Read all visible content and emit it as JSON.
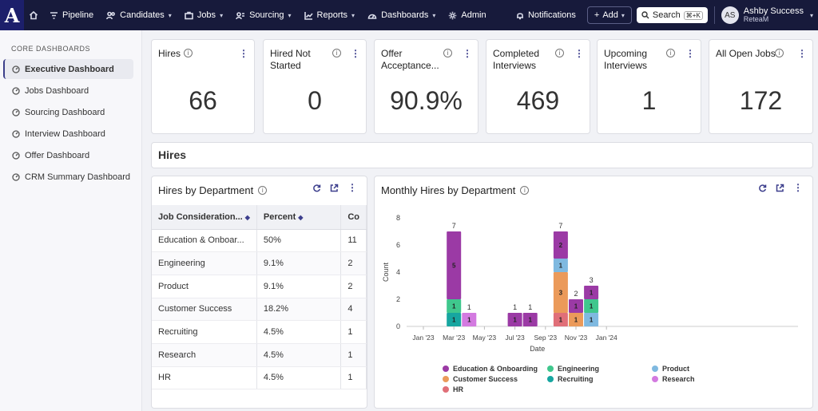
{
  "nav": {
    "logo": "A",
    "items": [
      {
        "label": "Pipeline",
        "caret": false
      },
      {
        "label": "Candidates",
        "caret": true
      },
      {
        "label": "Jobs",
        "caret": true
      },
      {
        "label": "Sourcing",
        "caret": true
      },
      {
        "label": "Reports",
        "caret": true
      },
      {
        "label": "Dashboards",
        "caret": true
      },
      {
        "label": "Admin",
        "caret": false
      }
    ],
    "notifications": "Notifications",
    "add": "Add",
    "search": "Search",
    "search_shortcut": "⌘+K",
    "user_initials": "AS",
    "user_name": "Ashby Success",
    "user_org": "ReteaM"
  },
  "sidebar": {
    "heading": "CORE DASHBOARDS",
    "items": [
      {
        "label": "Executive Dashboard",
        "active": true
      },
      {
        "label": "Jobs Dashboard",
        "active": false
      },
      {
        "label": "Sourcing Dashboard",
        "active": false
      },
      {
        "label": "Interview Dashboard",
        "active": false
      },
      {
        "label": "Offer Dashboard",
        "active": false
      },
      {
        "label": "CRM Summary Dashboard",
        "active": false
      }
    ]
  },
  "kpis": [
    {
      "title": "Hires",
      "value": "66"
    },
    {
      "title": "Hired Not Started",
      "value": "0"
    },
    {
      "title": "Offer Acceptance...",
      "value": "90.9%"
    },
    {
      "title": "Completed Interviews",
      "value": "469"
    },
    {
      "title": "Upcoming Interviews",
      "value": "1"
    },
    {
      "title": "All Open Jobs",
      "value": "172"
    }
  ],
  "section_title": "Hires",
  "dept_table": {
    "title": "Hires by Department",
    "columns": [
      "Job Consideration...",
      "Percent",
      "Co"
    ],
    "rows": [
      [
        "Education & Onboar...",
        "50%",
        "11"
      ],
      [
        "Engineering",
        "9.1%",
        "2"
      ],
      [
        "Product",
        "9.1%",
        "2"
      ],
      [
        "Customer Success",
        "18.2%",
        "4"
      ],
      [
        "Recruiting",
        "4.5%",
        "1"
      ],
      [
        "Research",
        "4.5%",
        "1"
      ],
      [
        "HR",
        "4.5%",
        "1"
      ]
    ]
  },
  "colors": {
    "Education & Onboarding": "#9b3aa5",
    "Engineering": "#3fc78d",
    "Product": "#7fb9e0",
    "Customer Success": "#eb9a5a",
    "Recruiting": "#17a6a0",
    "Research": "#d37ae0",
    "HR": "#e06f78"
  },
  "chart_data": {
    "type": "bar",
    "stacked": true,
    "title": "Monthly Hires by Department",
    "xlabel": "Date",
    "ylabel": "Count",
    "ylim": [
      0,
      8
    ],
    "y_ticks": [
      0,
      2,
      4,
      6,
      8
    ],
    "x_ticks": [
      "Jan '23",
      "Mar '23",
      "May '23",
      "Jul '23",
      "Sep '23",
      "Nov '23",
      "Jan '24"
    ],
    "legend": [
      "Education & Onboarding",
      "Engineering",
      "Product",
      "Customer Success",
      "Recruiting",
      "Research",
      "HR"
    ],
    "bars": [
      {
        "month": "Mar '23",
        "total": 7,
        "segments": [
          {
            "series": "Recruiting",
            "value": 1
          },
          {
            "series": "Engineering",
            "value": 1
          },
          {
            "series": "Education & Onboarding",
            "value": 5
          }
        ]
      },
      {
        "month": "Apr '23",
        "total": 1,
        "segments": [
          {
            "series": "Research",
            "value": 1
          }
        ]
      },
      {
        "month": "Jul '23",
        "total": 1,
        "segments": [
          {
            "series": "Education & Onboarding",
            "value": 1
          }
        ]
      },
      {
        "month": "Aug '23",
        "total": 1,
        "segments": [
          {
            "series": "Education & Onboarding",
            "value": 1
          }
        ]
      },
      {
        "month": "Oct '23",
        "total": 7,
        "segments": [
          {
            "series": "HR",
            "value": 1
          },
          {
            "series": "Customer Success",
            "value": 3
          },
          {
            "series": "Product",
            "value": 1
          },
          {
            "series": "Education & Onboarding",
            "value": 2
          }
        ]
      },
      {
        "month": "Nov '23",
        "total": 2,
        "segments": [
          {
            "series": "Customer Success",
            "value": 1
          },
          {
            "series": "Education & Onboarding",
            "value": 1
          }
        ]
      },
      {
        "month": "Dec '23",
        "total": 3,
        "segments": [
          {
            "series": "Product",
            "value": 1
          },
          {
            "series": "Engineering",
            "value": 1
          },
          {
            "series": "Education & Onboarding",
            "value": 1
          }
        ]
      }
    ]
  }
}
